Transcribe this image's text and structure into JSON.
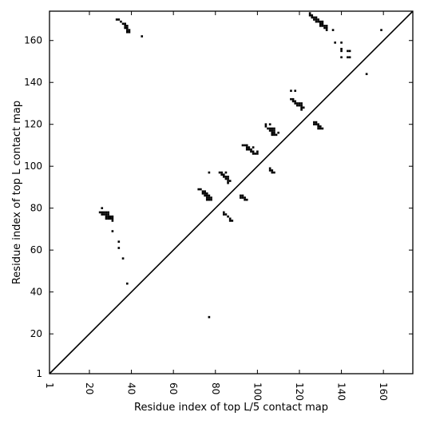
{
  "chart_data": {
    "type": "scatter",
    "title": "",
    "xlabel": "Residue index of top L/5 contact map",
    "ylabel": "Residue index of top L contact map",
    "xlim": [
      1,
      174
    ],
    "ylim": [
      1,
      174
    ],
    "xticks": [
      1,
      20,
      40,
      60,
      80,
      100,
      120,
      140,
      160
    ],
    "yticks": [
      1,
      20,
      40,
      60,
      80,
      100,
      120,
      140,
      160
    ],
    "x_tick_rotation": -90,
    "grid": false,
    "legend": "none",
    "marker": "square",
    "colors": {
      "marker": "#000000",
      "diagonal": "#000000",
      "axes": "#000000",
      "background": "#ffffff"
    },
    "diagonal": {
      "from": [
        1,
        1
      ],
      "to": [
        174,
        174
      ]
    },
    "series": [
      {
        "points": [
          [
            33,
            170
          ],
          [
            34,
            170
          ],
          [
            35,
            169
          ],
          [
            36,
            168
          ],
          [
            37,
            168
          ],
          [
            37,
            167
          ],
          [
            38,
            167
          ],
          [
            38,
            166
          ],
          [
            37,
            166
          ],
          [
            38,
            165
          ],
          [
            39,
            165
          ],
          [
            38,
            164
          ],
          [
            39,
            164
          ],
          [
            45,
            162
          ],
          [
            125,
            173
          ],
          [
            125,
            172
          ],
          [
            126,
            172
          ],
          [
            126,
            171
          ],
          [
            127,
            171
          ],
          [
            128,
            171
          ],
          [
            127,
            170
          ],
          [
            128,
            170
          ],
          [
            129,
            170
          ],
          [
            128,
            169
          ],
          [
            129,
            169
          ],
          [
            130,
            169
          ],
          [
            131,
            169
          ],
          [
            130,
            168
          ],
          [
            131,
            168
          ],
          [
            130,
            167
          ],
          [
            131,
            167
          ],
          [
            132,
            167
          ],
          [
            133,
            167
          ],
          [
            132,
            166
          ],
          [
            133,
            166
          ],
          [
            133,
            165
          ],
          [
            136,
            165
          ],
          [
            159,
            165
          ],
          [
            137,
            159
          ],
          [
            140,
            159
          ],
          [
            140,
            156
          ],
          [
            140,
            155
          ],
          [
            143,
            155
          ],
          [
            144,
            155
          ],
          [
            140,
            152
          ],
          [
            143,
            152
          ],
          [
            144,
            152
          ],
          [
            152,
            144
          ],
          [
            116,
            136
          ],
          [
            118,
            136
          ],
          [
            116,
            132
          ],
          [
            117,
            132
          ],
          [
            117,
            131
          ],
          [
            118,
            131
          ],
          [
            118,
            130
          ],
          [
            119,
            130
          ],
          [
            120,
            130
          ],
          [
            121,
            130
          ],
          [
            119,
            129
          ],
          [
            120,
            129
          ],
          [
            121,
            129
          ],
          [
            121,
            128
          ],
          [
            122,
            128
          ],
          [
            121,
            127
          ],
          [
            127,
            121
          ],
          [
            128,
            121
          ],
          [
            127,
            120
          ],
          [
            128,
            120
          ],
          [
            129,
            120
          ],
          [
            129,
            119
          ],
          [
            130,
            119
          ],
          [
            129,
            118
          ],
          [
            130,
            118
          ],
          [
            131,
            118
          ],
          [
            104,
            120
          ],
          [
            106,
            120
          ],
          [
            104,
            119
          ],
          [
            105,
            118
          ],
          [
            106,
            118
          ],
          [
            107,
            118
          ],
          [
            108,
            118
          ],
          [
            106,
            117
          ],
          [
            107,
            117
          ],
          [
            108,
            117
          ],
          [
            107,
            116
          ],
          [
            108,
            116
          ],
          [
            110,
            116
          ],
          [
            107,
            115
          ],
          [
            108,
            115
          ],
          [
            109,
            115
          ],
          [
            93,
            110
          ],
          [
            94,
            110
          ],
          [
            95,
            110
          ],
          [
            95,
            109
          ],
          [
            96,
            109
          ],
          [
            98,
            109
          ],
          [
            95,
            108
          ],
          [
            96,
            108
          ],
          [
            97,
            108
          ],
          [
            97,
            107
          ],
          [
            98,
            107
          ],
          [
            100,
            107
          ],
          [
            98,
            106
          ],
          [
            99,
            106
          ],
          [
            100,
            106
          ],
          [
            106,
            99
          ],
          [
            106,
            98
          ],
          [
            107,
            98
          ],
          [
            107,
            97
          ],
          [
            108,
            97
          ],
          [
            77,
            97
          ],
          [
            82,
            97
          ],
          [
            83,
            97
          ],
          [
            85,
            97
          ],
          [
            83,
            96
          ],
          [
            84,
            96
          ],
          [
            84,
            95
          ],
          [
            85,
            95
          ],
          [
            86,
            95
          ],
          [
            85,
            94
          ],
          [
            86,
            94
          ],
          [
            86,
            93
          ],
          [
            87,
            93
          ],
          [
            86,
            92
          ],
          [
            72,
            89
          ],
          [
            73,
            89
          ],
          [
            74,
            88
          ],
          [
            75,
            88
          ],
          [
            74,
            87
          ],
          [
            75,
            87
          ],
          [
            76,
            87
          ],
          [
            75,
            86
          ],
          [
            76,
            86
          ],
          [
            77,
            86
          ],
          [
            76,
            85
          ],
          [
            77,
            85
          ],
          [
            78,
            85
          ],
          [
            76,
            84
          ],
          [
            77,
            84
          ],
          [
            78,
            84
          ],
          [
            92,
            86
          ],
          [
            93,
            86
          ],
          [
            92,
            85
          ],
          [
            93,
            85
          ],
          [
            94,
            85
          ],
          [
            94,
            84
          ],
          [
            95,
            84
          ],
          [
            84,
            78
          ],
          [
            84,
            77
          ],
          [
            85,
            77
          ],
          [
            86,
            76
          ],
          [
            87,
            75
          ],
          [
            87,
            74
          ],
          [
            88,
            74
          ],
          [
            26,
            80
          ],
          [
            25,
            78
          ],
          [
            26,
            78
          ],
          [
            27,
            78
          ],
          [
            28,
            78
          ],
          [
            29,
            78
          ],
          [
            26,
            77
          ],
          [
            27,
            77
          ],
          [
            28,
            77
          ],
          [
            29,
            77
          ],
          [
            28,
            76
          ],
          [
            29,
            76
          ],
          [
            30,
            76
          ],
          [
            31,
            76
          ],
          [
            28,
            75
          ],
          [
            29,
            75
          ],
          [
            30,
            75
          ],
          [
            31,
            75
          ],
          [
            31,
            74
          ],
          [
            31,
            69
          ],
          [
            34,
            64
          ],
          [
            34,
            61
          ],
          [
            36,
            56
          ],
          [
            38,
            44
          ],
          [
            77,
            28
          ]
        ]
      }
    ]
  }
}
